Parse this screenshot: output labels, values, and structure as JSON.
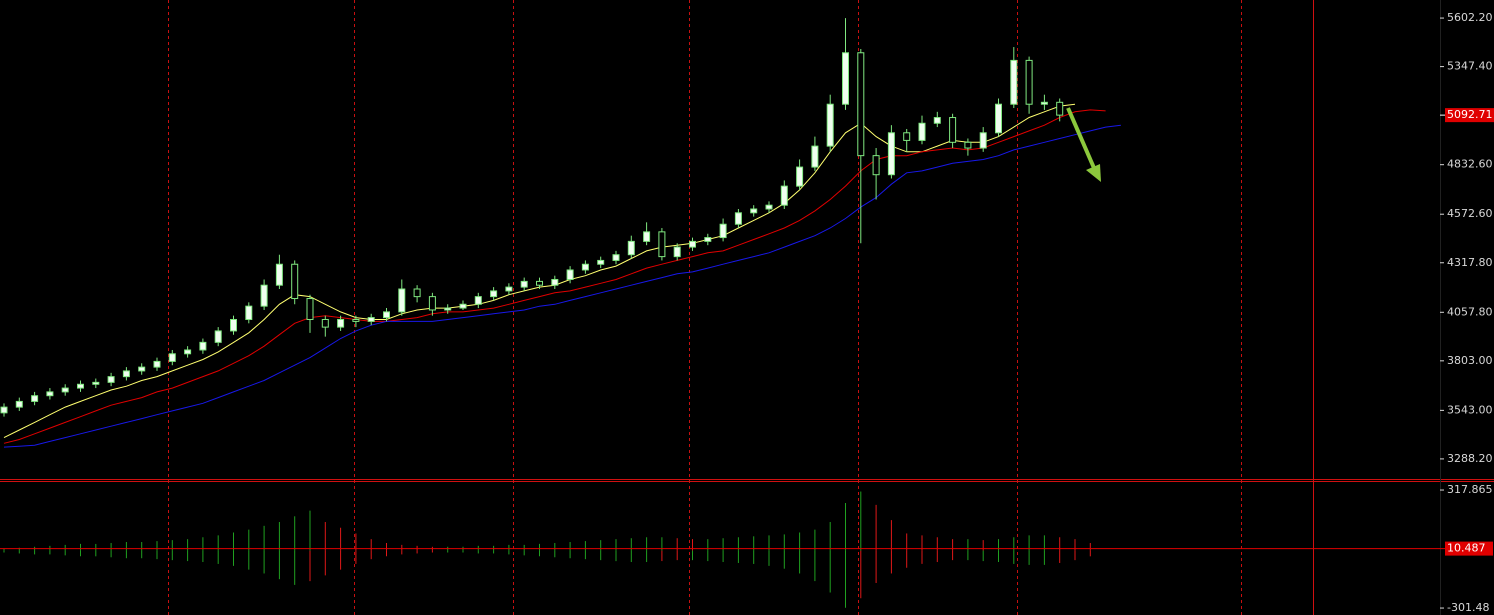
{
  "chart_data": [
    {
      "type": "candlestick",
      "open": [
        3530,
        3560,
        3590,
        3620,
        3640,
        3660,
        3680,
        3690,
        3720,
        3750,
        3770,
        3800,
        3840,
        3860,
        3900,
        3960,
        4020,
        4090,
        4200,
        4310,
        4130,
        4020,
        3980,
        4020,
        4010,
        4030,
        4060,
        4180,
        4140,
        4070,
        4080,
        4100,
        4140,
        4170,
        4190,
        4220,
        4200,
        4230,
        4280,
        4310,
        4330,
        4360,
        4430,
        4480,
        4350,
        4400,
        4430,
        4450,
        4520,
        4580,
        4600,
        4620,
        4720,
        4820,
        4930,
        5150,
        5420,
        4880,
        4780,
        5000,
        4960,
        5050,
        5080,
        4950,
        4920,
        5000,
        5150,
        5380,
        5150,
        5160
      ],
      "high": [
        3580,
        3610,
        3640,
        3660,
        3680,
        3700,
        3710,
        3740,
        3770,
        3790,
        3820,
        3860,
        3880,
        3920,
        3980,
        4040,
        4110,
        4230,
        4360,
        4330,
        4150,
        4040,
        4040,
        4040,
        4050,
        4080,
        4230,
        4200,
        4160,
        4100,
        4120,
        4160,
        4190,
        4210,
        4240,
        4240,
        4250,
        4300,
        4330,
        4350,
        4380,
        4460,
        4530,
        4500,
        4420,
        4450,
        4470,
        4550,
        4600,
        4620,
        4640,
        4750,
        4860,
        4980,
        5200,
        5602,
        5440,
        4920,
        5040,
        5020,
        5090,
        5110,
        5100,
        4970,
        5030,
        5180,
        5450,
        5400,
        5200,
        5180
      ],
      "low": [
        3510,
        3540,
        3570,
        3600,
        3620,
        3640,
        3660,
        3670,
        3700,
        3730,
        3750,
        3780,
        3820,
        3840,
        3880,
        3940,
        4000,
        4070,
        4180,
        4100,
        3950,
        3930,
        3960,
        3980,
        3990,
        4010,
        4040,
        4110,
        4040,
        4050,
        4070,
        4080,
        4120,
        4150,
        4170,
        4180,
        4180,
        4210,
        4260,
        4290,
        4310,
        4340,
        4410,
        4330,
        4330,
        4380,
        4410,
        4430,
        4500,
        4560,
        4580,
        4600,
        4700,
        4800,
        4900,
        5120,
        4420,
        4650,
        4760,
        4900,
        4940,
        5030,
        4920,
        4880,
        4900,
        4980,
        5130,
        5100,
        5120,
        5060
      ],
      "close": [
        3560,
        3590,
        3620,
        3640,
        3660,
        3680,
        3690,
        3720,
        3750,
        3770,
        3800,
        3840,
        3860,
        3900,
        3960,
        4020,
        4090,
        4200,
        4310,
        4130,
        4020,
        3980,
        4020,
        4010,
        4030,
        4060,
        4180,
        4140,
        4070,
        4080,
        4100,
        4140,
        4170,
        4190,
        4220,
        4200,
        4230,
        4280,
        4310,
        4330,
        4360,
        4430,
        4480,
        4350,
        4400,
        4430,
        4450,
        4520,
        4580,
        4600,
        4620,
        4720,
        4820,
        4930,
        5150,
        5420,
        4880,
        4780,
        5000,
        4960,
        5050,
        5080,
        4950,
        4920,
        5000,
        5150,
        5380,
        5150,
        5160,
        5092.71
      ],
      "up_color": "#f0fff0",
      "down_color": "#000000",
      "wick_color": "#80e880",
      "lines": [
        {
          "color": "#ffff70",
          "values": [
            3400,
            3440,
            3480,
            3520,
            3560,
            3590,
            3620,
            3650,
            3670,
            3700,
            3720,
            3750,
            3780,
            3810,
            3850,
            3900,
            3950,
            4020,
            4100,
            4150,
            4140,
            4100,
            4060,
            4030,
            4020,
            4020,
            4050,
            4070,
            4080,
            4080,
            4090,
            4100,
            4120,
            4150,
            4170,
            4190,
            4200,
            4230,
            4250,
            4280,
            4300,
            4340,
            4380,
            4400,
            4410,
            4420,
            4440,
            4460,
            4500,
            4540,
            4580,
            4630,
            4700,
            4790,
            4900,
            5000,
            5050,
            4980,
            4930,
            4900,
            4900,
            4930,
            4960,
            4950,
            4950,
            4980,
            5030,
            5080,
            5110,
            5140,
            5150
          ]
        },
        {
          "color": "#e00000",
          "values": [
            3370,
            3390,
            3420,
            3450,
            3480,
            3510,
            3540,
            3570,
            3590,
            3610,
            3640,
            3660,
            3690,
            3720,
            3750,
            3790,
            3830,
            3880,
            3940,
            4000,
            4030,
            4040,
            4030,
            4020,
            4010,
            4010,
            4020,
            4030,
            4050,
            4060,
            4060,
            4070,
            4080,
            4100,
            4120,
            4140,
            4160,
            4170,
            4190,
            4210,
            4230,
            4260,
            4290,
            4310,
            4330,
            4350,
            4370,
            4380,
            4410,
            4440,
            4470,
            4500,
            4540,
            4590,
            4650,
            4720,
            4800,
            4860,
            4880,
            4880,
            4900,
            4910,
            4920,
            4910,
            4920,
            4950,
            4980,
            5010,
            5040,
            5080,
            5110,
            5120,
            5115
          ]
        },
        {
          "color": "#1818e8",
          "values": [
            3350,
            3355,
            3360,
            3380,
            3400,
            3420,
            3440,
            3460,
            3480,
            3500,
            3520,
            3540,
            3560,
            3580,
            3610,
            3640,
            3670,
            3700,
            3740,
            3780,
            3820,
            3870,
            3920,
            3960,
            3990,
            4010,
            4010,
            4010,
            4010,
            4020,
            4030,
            4040,
            4050,
            4060,
            4070,
            4090,
            4100,
            4120,
            4140,
            4160,
            4180,
            4200,
            4220,
            4240,
            4260,
            4270,
            4290,
            4310,
            4330,
            4350,
            4370,
            4400,
            4430,
            4460,
            4500,
            4550,
            4610,
            4660,
            4730,
            4790,
            4800,
            4820,
            4840,
            4850,
            4860,
            4880,
            4910,
            4930,
            4950,
            4970,
            4990,
            5010,
            5030,
            5040
          ]
        }
      ],
      "ylim": [
        3188,
        5697
      ],
      "yticks": [
        {
          "value": 5602.2,
          "label": "5602.20"
        },
        {
          "value": 5347.4,
          "label": "5347.40"
        },
        {
          "value": 4832.6,
          "label": "4832.60"
        },
        {
          "value": 4572.6,
          "label": "4572.60"
        },
        {
          "value": 4317.8,
          "label": "4317.80"
        },
        {
          "value": 4057.8,
          "label": "4057.80"
        },
        {
          "value": 3803,
          "label": "3803.00"
        },
        {
          "value": 3543,
          "label": "3543.00"
        },
        {
          "value": 3288.2,
          "label": "3288.20"
        }
      ],
      "last_price": 5092.71
    },
    {
      "type": "gator",
      "upper": [
        10,
        15,
        20,
        25,
        30,
        35,
        35,
        40,
        45,
        45,
        50,
        55,
        60,
        70,
        80,
        95,
        110,
        130,
        150,
        180,
        210,
        150,
        120,
        90,
        60,
        40,
        30,
        25,
        20,
        20,
        20,
        25,
        25,
        30,
        30,
        35,
        40,
        45,
        50,
        55,
        60,
        65,
        70,
        70,
        65,
        60,
        60,
        65,
        70,
        75,
        80,
        85,
        95,
        110,
        150,
        250,
        310,
        240,
        160,
        90,
        80,
        70,
        60,
        60,
        55,
        60,
        70,
        80,
        80,
        70,
        60,
        40
      ],
      "lower": [
        -10,
        -15,
        -20,
        -20,
        -25,
        -30,
        -30,
        -35,
        -40,
        -40,
        -45,
        -50,
        -55,
        -60,
        -70,
        -80,
        -100,
        -120,
        -150,
        -180,
        -160,
        -130,
        -100,
        -70,
        -45,
        -30,
        -20,
        -15,
        -10,
        -10,
        -10,
        -15,
        -15,
        -20,
        -25,
        -30,
        -35,
        -40,
        -45,
        -50,
        -55,
        -60,
        -60,
        -55,
        -50,
        -50,
        -55,
        -60,
        -65,
        -70,
        -80,
        -95,
        -120,
        -160,
        -220,
        -300,
        -250,
        -170,
        -120,
        -90,
        -70,
        -60,
        -50,
        -50,
        -55,
        -60,
        -70,
        -75,
        -75,
        -65,
        -50,
        -30
      ],
      "color_up": "#20a020",
      "color_down": "#e01818",
      "ylim": [
        -338,
        360
      ],
      "yticks": [
        317.865,
        -301.48
      ],
      "last_value": 10.487
    }
  ]
}
